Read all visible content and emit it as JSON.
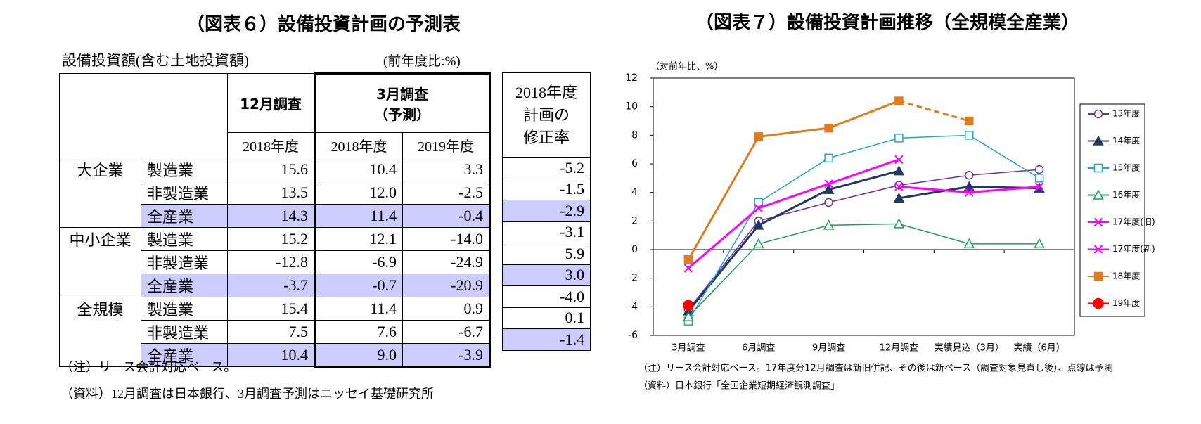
{
  "table": {
    "title": "（図表６）設備投資計画の予測表",
    "subtitle": "設備投資額(含む土地投資額)",
    "unit": "(前年度比:%)",
    "dec_survey": "12月調査",
    "mar_survey": "3月調査",
    "forecast": "（予測）",
    "years": [
      "2018年度",
      "2018年度",
      "2019年度"
    ],
    "revision_header": [
      "2018年度",
      "計画の",
      "修正率"
    ],
    "groups": [
      {
        "name": "大企業",
        "rows": [
          {
            "sector": "製造業",
            "values": [
              "15.6",
              "10.4",
              "3.3"
            ],
            "revision": "-5.2"
          },
          {
            "sector": "非製造業",
            "values": [
              "13.5",
              "12.0",
              "-2.5"
            ],
            "revision": "-1.5"
          },
          {
            "sector": "全産業",
            "values": [
              "14.3",
              "11.4",
              "-0.4"
            ],
            "revision": "-2.9"
          }
        ]
      },
      {
        "name": "中小企業",
        "rows": [
          {
            "sector": "製造業",
            "values": [
              "15.2",
              "12.1",
              "-14.0"
            ],
            "revision": "-3.1"
          },
          {
            "sector": "非製造業",
            "values": [
              "-12.8",
              "-6.9",
              "-24.9"
            ],
            "revision": "5.9"
          },
          {
            "sector": "全産業",
            "values": [
              "-3.7",
              "-0.7",
              "-20.9"
            ],
            "revision": "3.0"
          }
        ]
      },
      {
        "name": "全規模",
        "rows": [
          {
            "sector": "製造業",
            "values": [
              "15.4",
              "11.4",
              "0.9"
            ],
            "revision": "-4.0"
          },
          {
            "sector": "非製造業",
            "values": [
              "7.5",
              "7.6",
              "-6.7"
            ],
            "revision": "0.1"
          },
          {
            "sector": "全産業",
            "values": [
              "10.4",
              "9.0",
              "-3.9"
            ],
            "revision": "-1.4"
          }
        ]
      }
    ],
    "notes": [
      "（注）リース会計対応ベース。",
      "（資料）12月調査は日本銀行、3月調査予測はニッセイ基礎研究所"
    ]
  },
  "chart_data": {
    "type": "line",
    "title": "（図表７）設備投資計画推移（全規模全産業）",
    "y_label": "（対前年比、%）",
    "categories": [
      "3月調査",
      "6月調査",
      "9月調査",
      "12月調査",
      "実績見込（3月）",
      "実績（6月）"
    ],
    "ylim": [
      -6,
      12
    ],
    "yticks": [
      -6,
      -4,
      -2,
      0,
      2,
      4,
      6,
      8,
      10,
      12
    ],
    "series": [
      {
        "name": "13年度",
        "color": "#7030a0",
        "marker": "circle",
        "filled": false,
        "values": [
          -4.2,
          2.0,
          3.3,
          4.5,
          5.2,
          5.6
        ]
      },
      {
        "name": "14年度",
        "color": "#1f3864",
        "marker": "triangle",
        "filled": true,
        "values": [
          -4.3,
          1.7,
          4.2,
          5.5,
          null,
          null
        ]
      },
      {
        "name": "14年度",
        "color": "#1f3864",
        "marker": "triangle",
        "filled": true,
        "values": [
          null,
          null,
          null,
          3.6,
          4.4,
          4.3
        ]
      },
      {
        "name": "15年度",
        "color": "#1fa5d6",
        "marker": "square",
        "filled": false,
        "values": [
          -5.0,
          3.3,
          6.4,
          7.8,
          8.0,
          5.0
        ]
      },
      {
        "name": "16年度",
        "color": "#1e9e50",
        "marker": "triangle",
        "filled": false,
        "values": [
          -4.7,
          0.4,
          1.7,
          1.8,
          0.4,
          0.4
        ]
      },
      {
        "name": "17年度(旧)",
        "color": "#ff00ff",
        "marker": "x",
        "filled": true,
        "values": [
          -1.3,
          2.9,
          4.6,
          6.3,
          null,
          null
        ]
      },
      {
        "name": "17年度(新)",
        "color": "#ff00ff",
        "marker": "x",
        "filled": true,
        "values": [
          null,
          null,
          null,
          4.4,
          4.0,
          4.4
        ]
      },
      {
        "name": "18年度",
        "color": "#e07b1f",
        "marker": "square",
        "filled": true,
        "dash_from": 3,
        "values": [
          -0.7,
          7.9,
          8.5,
          10.4,
          9.0,
          null
        ]
      },
      {
        "name": "19年度",
        "color": "#ff0000",
        "marker": "circle",
        "filled": true,
        "values": [
          -3.9,
          null,
          null,
          null,
          null,
          null
        ]
      }
    ],
    "notes": [
      "（注）リース会計対応ベース。17年度分12月調査は新旧併記、その後は新ベース（調査対象見直し後）、点線は予測",
      "（資料）日本銀行「全国企業短期経済観測調査」"
    ]
  }
}
